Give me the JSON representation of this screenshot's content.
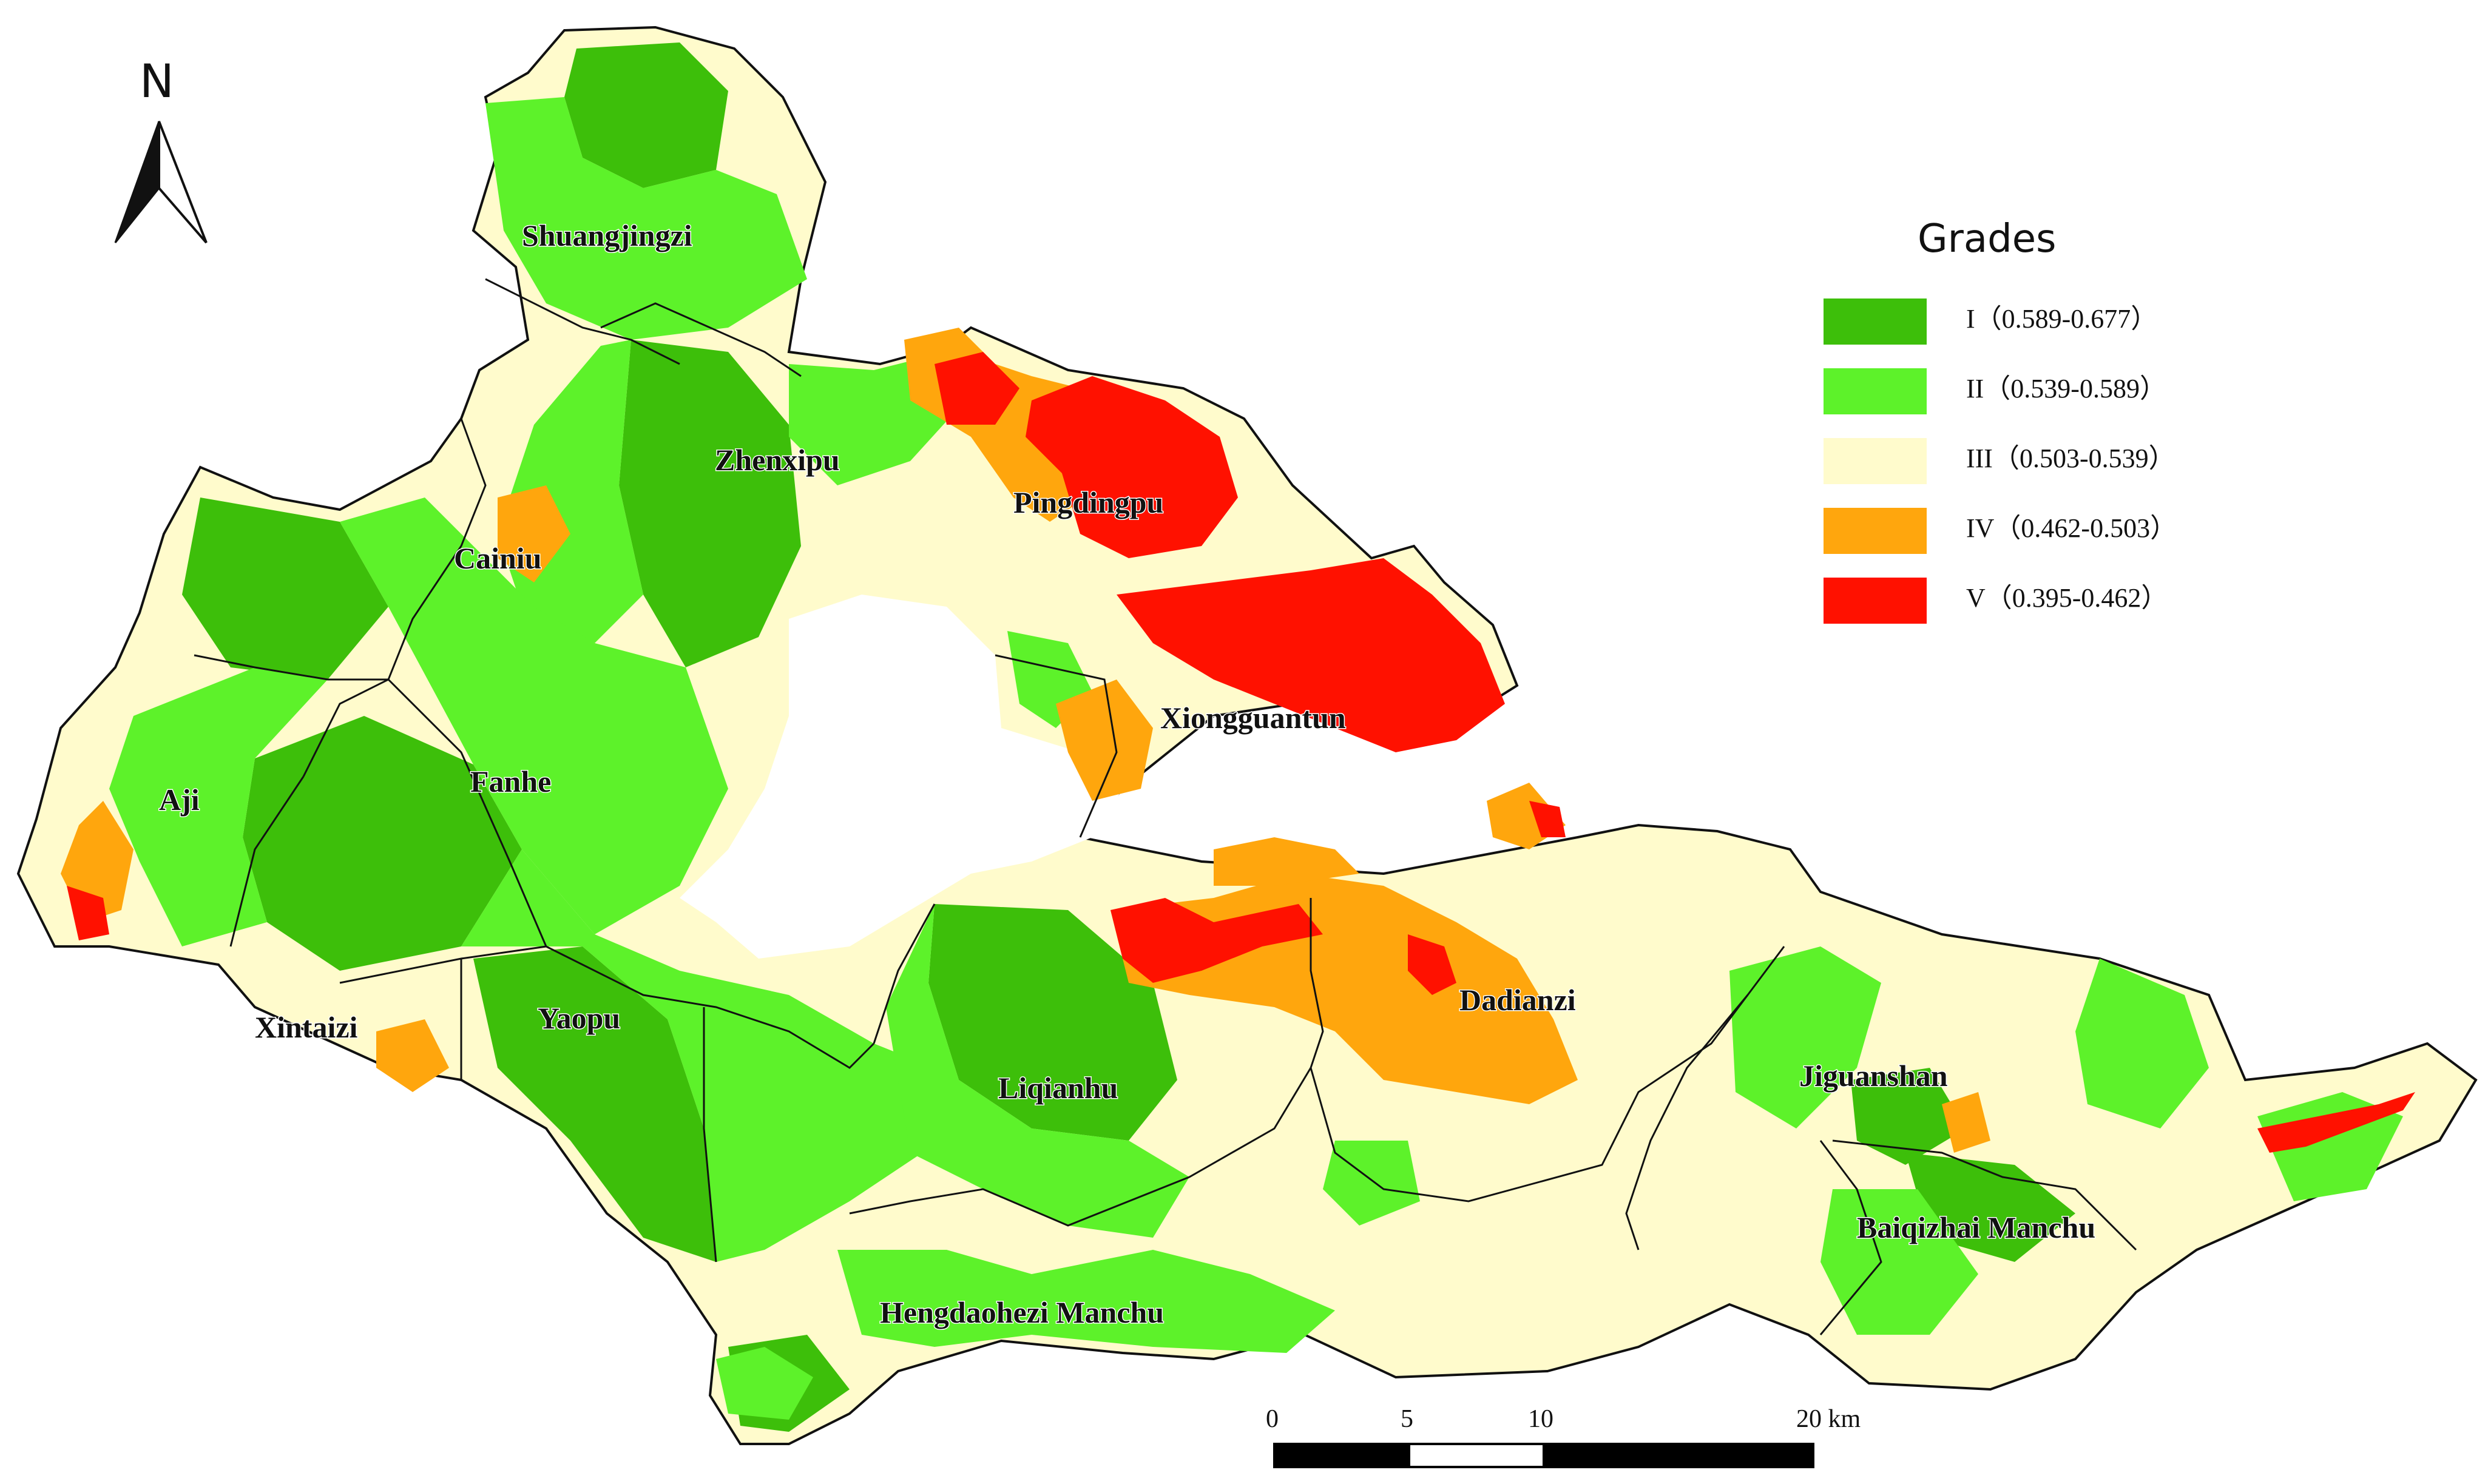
{
  "colors": {
    "grade_I": "#3dbf0a",
    "grade_II": "#5df22a",
    "grade_III": "#fffbcc",
    "grade_IV": "#ffa60d",
    "grade_V": "#ff1100",
    "boundary": "#111111"
  },
  "north_arrow": {
    "letter": "N",
    "icon": "north-arrow-icon"
  },
  "legend": {
    "title": "Grades",
    "items": [
      {
        "label": "I（0.589-0.677）",
        "color": "#3dbf0a"
      },
      {
        "label": "II（0.539-0.589）",
        "color": "#5df22a"
      },
      {
        "label": "III（0.503-0.539）",
        "color": "#fffbcc"
      },
      {
        "label": "IV（0.462-0.503）",
        "color": "#ffa60d"
      },
      {
        "label": "V（0.395-0.462）",
        "color": "#ff1100"
      }
    ]
  },
  "places": {
    "shuangjingzi": "Shuangjingzi",
    "zhenxipu": "Zhenxipu",
    "pingdingpu": "Pingdingpu",
    "cainiu": "Cainiu",
    "xiongguantun": "Xiongguantun",
    "aji": "Aji",
    "fanhe": "Fanhe",
    "dadianzi": "Dadianzi",
    "jiguanshan": "Jiguanshan",
    "xintaizi": "Xintaizi",
    "yaopu": "Yaopu",
    "liqianhu": "Liqianhu",
    "baiqizhai": "Baiqizhai Manchu",
    "hengdaohezi": "Hengdaohezi Manchu"
  },
  "scale_bar": {
    "ticks": [
      "0",
      "5",
      "10",
      "20 km"
    ]
  }
}
